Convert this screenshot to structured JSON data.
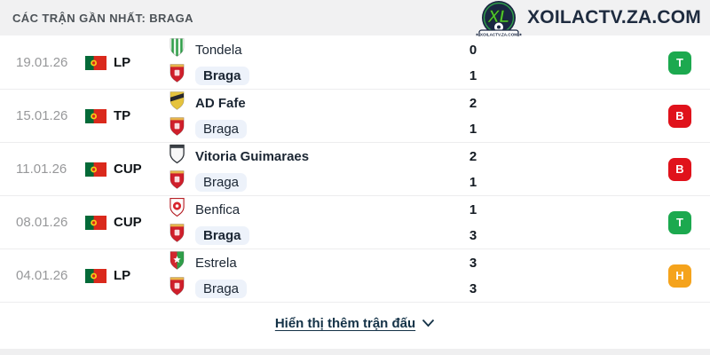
{
  "header": {
    "title": "CÁC TRẬN GẦN NHẤT: BRAGA"
  },
  "brand": {
    "wordmark": "XOILACTV.ZA.COM",
    "badge_letters": "XL",
    "badge_ribbon": "XOILACTV.ZA.COM"
  },
  "result_colors": {
    "win": "#1ca94f",
    "loss": "#e0121b",
    "draw": "#f5a31c"
  },
  "highlight_color": "#edf2fa",
  "matches": [
    {
      "date": "19.01.26",
      "competition": "LP",
      "result": "T",
      "outcome": "win",
      "teams": [
        {
          "name": "Tondela",
          "score": "0",
          "bold": false,
          "highlight": false,
          "crest": {
            "style": "stripes",
            "c1": "#f2f9f0",
            "c2": "#2f9e49"
          }
        },
        {
          "name": "Braga",
          "score": "1",
          "bold": true,
          "highlight": true,
          "crest": {
            "style": "braga",
            "c1": "#cf1f2b",
            "c2": "#e7b54a"
          }
        }
      ]
    },
    {
      "date": "15.01.26",
      "competition": "TP",
      "result": "B",
      "outcome": "loss",
      "teams": [
        {
          "name": "AD Fafe",
          "score": "2",
          "bold": true,
          "highlight": false,
          "crest": {
            "style": "band",
            "c1": "#e5c33e",
            "c2": "#26272d"
          }
        },
        {
          "name": "Braga",
          "score": "1",
          "bold": false,
          "highlight": true,
          "crest": {
            "style": "braga",
            "c1": "#cf1f2b",
            "c2": "#e7b54a"
          }
        }
      ]
    },
    {
      "date": "11.01.26",
      "competition": "CUP",
      "result": "B",
      "outcome": "loss",
      "teams": [
        {
          "name": "Vitoria Guimaraes",
          "score": "2",
          "bold": true,
          "highlight": false,
          "crest": {
            "style": "outline",
            "c1": "#f7f7f7",
            "c2": "#3b4047"
          }
        },
        {
          "name": "Braga",
          "score": "1",
          "bold": false,
          "highlight": true,
          "crest": {
            "style": "braga",
            "c1": "#cf1f2b",
            "c2": "#e7b54a"
          }
        }
      ]
    },
    {
      "date": "08.01.26",
      "competition": "CUP",
      "result": "T",
      "outcome": "win",
      "teams": [
        {
          "name": "Benfica",
          "score": "1",
          "bold": false,
          "highlight": false,
          "crest": {
            "style": "circle",
            "c1": "#fdfdfd",
            "c2": "#d8262e"
          }
        },
        {
          "name": "Braga",
          "score": "3",
          "bold": true,
          "highlight": true,
          "crest": {
            "style": "braga",
            "c1": "#cf1f2b",
            "c2": "#e7b54a"
          }
        }
      ]
    },
    {
      "date": "04.01.26",
      "competition": "LP",
      "result": "H",
      "outcome": "draw",
      "teams": [
        {
          "name": "Estrela",
          "score": "3",
          "bold": false,
          "highlight": false,
          "crest": {
            "style": "split",
            "c1": "#d2262e",
            "c2": "#2f9e49"
          }
        },
        {
          "name": "Braga",
          "score": "3",
          "bold": false,
          "highlight": true,
          "crest": {
            "style": "braga",
            "c1": "#cf1f2b",
            "c2": "#e7b54a"
          }
        }
      ]
    }
  ],
  "footer": {
    "show_more": "Hiển thị thêm trận đấu"
  }
}
